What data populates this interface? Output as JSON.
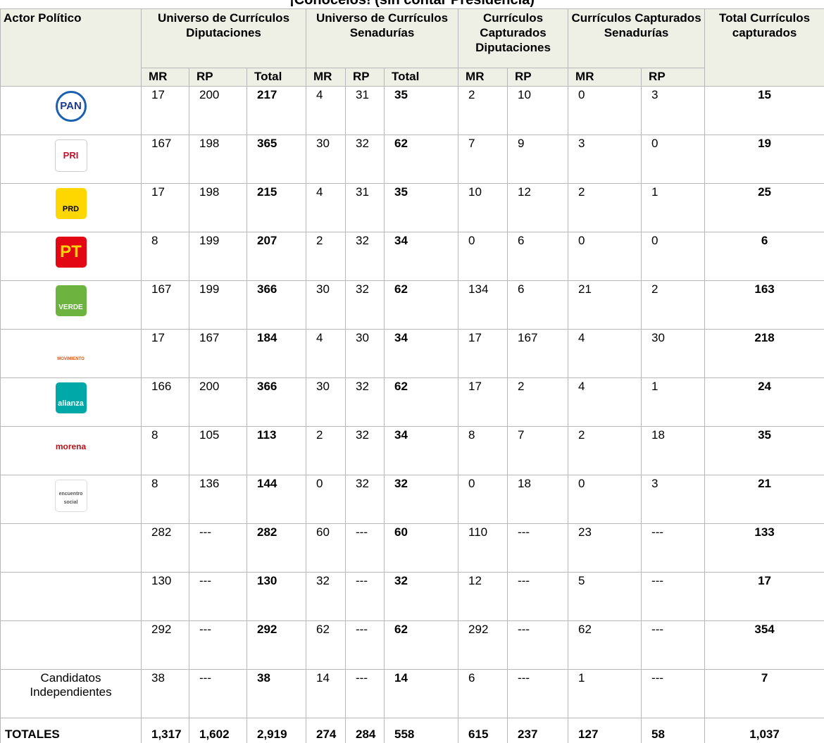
{
  "table": {
    "title": "¡Conócelos! (sin contar Presidencia)",
    "actor_header": "Actor Político",
    "groups": [
      "Universo de Currículos Diputaciones",
      "Universo de Currículos Senadurías",
      "Currículos Capturados Diputaciones",
      "Currículos Capturados Senadurías",
      "Total Currículos capturados"
    ],
    "subheaders": [
      "MR",
      "RP",
      "Total",
      "MR",
      "RP",
      "Total",
      "MR",
      "RP",
      "MR",
      "RP"
    ],
    "rows": [
      {
        "logo": "PAN",
        "cells": [
          17,
          200,
          217,
          4,
          31,
          35,
          2,
          10,
          0,
          3,
          15
        ]
      },
      {
        "logo": "PRI",
        "cells": [
          167,
          198,
          365,
          30,
          32,
          62,
          7,
          9,
          3,
          0,
          19
        ]
      },
      {
        "logo": "PRD",
        "cells": [
          17,
          198,
          215,
          4,
          31,
          35,
          10,
          12,
          2,
          1,
          25
        ]
      },
      {
        "logo": "PT",
        "cells": [
          8,
          199,
          207,
          2,
          32,
          34,
          0,
          6,
          0,
          0,
          6
        ]
      },
      {
        "logo": "VERDE",
        "cells": [
          167,
          199,
          366,
          30,
          32,
          62,
          134,
          6,
          21,
          2,
          163
        ]
      },
      {
        "logo": "MOVIMIENTO CIUDADANO",
        "cells": [
          17,
          167,
          184,
          4,
          30,
          34,
          17,
          167,
          4,
          30,
          218
        ]
      },
      {
        "logo": "alianza",
        "cells": [
          166,
          200,
          366,
          30,
          32,
          62,
          17,
          2,
          4,
          1,
          24
        ]
      },
      {
        "logo": "morena",
        "cells": [
          8,
          105,
          113,
          2,
          32,
          34,
          8,
          7,
          2,
          18,
          35
        ]
      },
      {
        "logo": "encuentro social",
        "cells": [
          8,
          136,
          144,
          0,
          32,
          32,
          0,
          18,
          0,
          3,
          21
        ]
      },
      {
        "cells": [
          282,
          "---",
          282,
          60,
          "---",
          60,
          110,
          "---",
          23,
          "---",
          133
        ]
      },
      {
        "cells": [
          130,
          "---",
          130,
          32,
          "---",
          32,
          12,
          "---",
          5,
          "---",
          17
        ]
      },
      {
        "cells": [
          292,
          "---",
          292,
          62,
          "---",
          62,
          292,
          "---",
          62,
          "---",
          354
        ]
      },
      {
        "actor": "Candidatos Independientes",
        "cells": [
          38,
          "---",
          38,
          14,
          "---",
          14,
          6,
          "---",
          1,
          "---",
          7
        ]
      },
      {
        "actor": "TOTALES",
        "cells": [
          "1,317",
          "1,602",
          "2,919",
          274,
          284,
          558,
          615,
          237,
          127,
          58,
          "1,037"
        ]
      }
    ]
  }
}
